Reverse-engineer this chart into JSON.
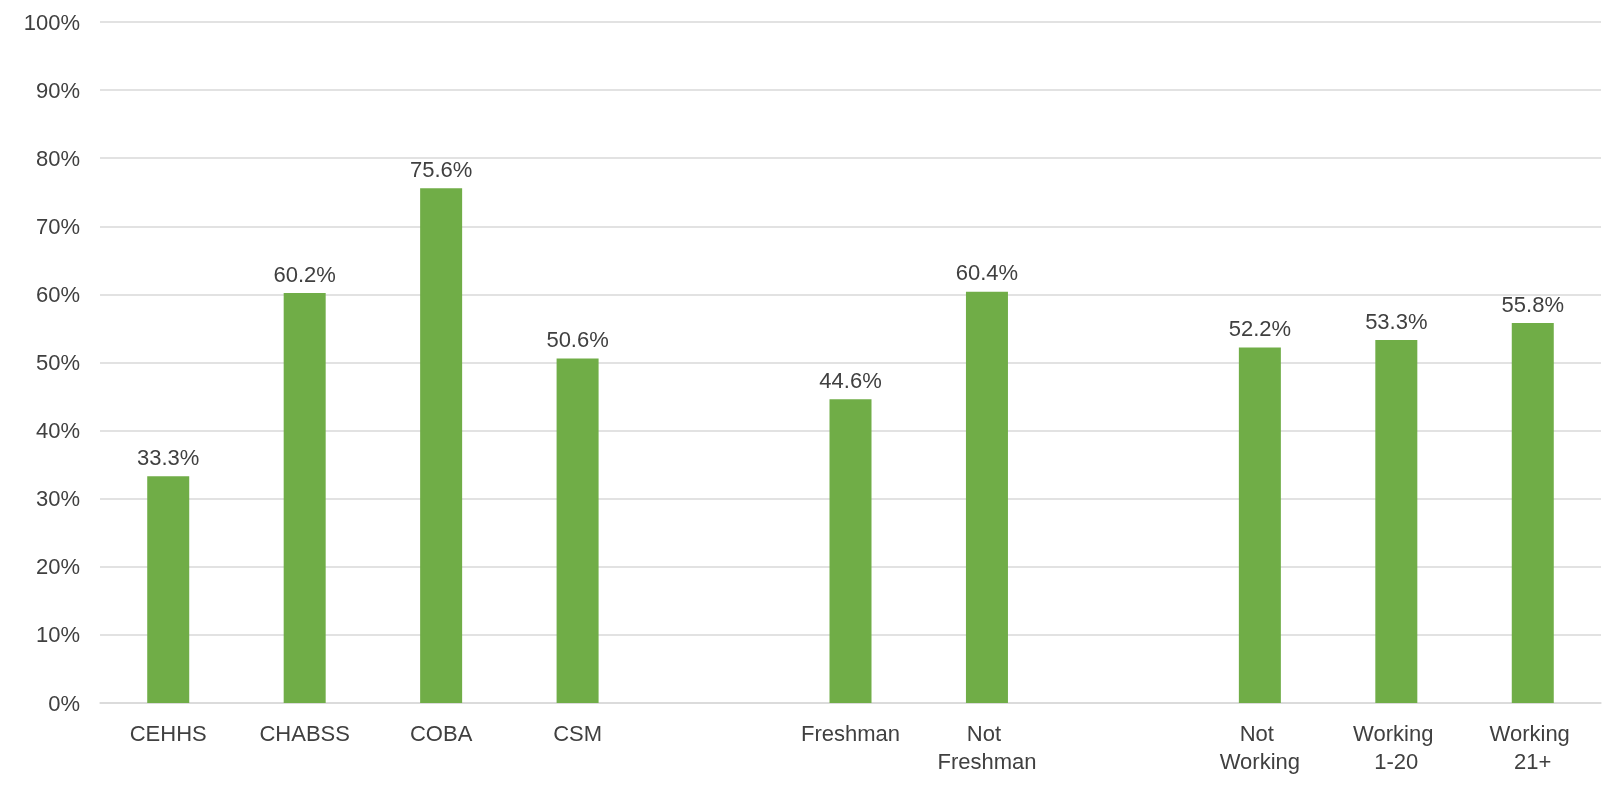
{
  "chart_data": {
    "type": "bar",
    "categories": [
      "CEHHS",
      "CHABSS",
      "COBA",
      "CSM",
      null,
      "Freshman",
      "Not Freshman",
      null,
      "Not Working",
      "Working 1-20",
      "Working 21+"
    ],
    "values": [
      33.3,
      60.2,
      75.6,
      50.6,
      null,
      44.6,
      60.4,
      null,
      52.2,
      53.3,
      55.8
    ],
    "value_labels": [
      "33.3%",
      "60.2%",
      "75.6%",
      "50.6%",
      null,
      "44.6%",
      "60.4%",
      null,
      "52.2%",
      "53.3%",
      "55.8%"
    ],
    "color": "#70ad47",
    "ylim": [
      0,
      100
    ],
    "yticks": [
      {
        "value": 0,
        "label": "0%"
      },
      {
        "value": 10,
        "label": "10%"
      },
      {
        "value": 20,
        "label": "20%"
      },
      {
        "value": 30,
        "label": "30%"
      },
      {
        "value": 40,
        "label": "40%"
      },
      {
        "value": 50,
        "label": "50%"
      },
      {
        "value": 60,
        "label": "60%"
      },
      {
        "value": 70,
        "label": "70%"
      },
      {
        "value": 80,
        "label": "80%"
      },
      {
        "value": 90,
        "label": "90%"
      },
      {
        "value": 100,
        "label": "100%"
      }
    ],
    "grid": "y"
  }
}
